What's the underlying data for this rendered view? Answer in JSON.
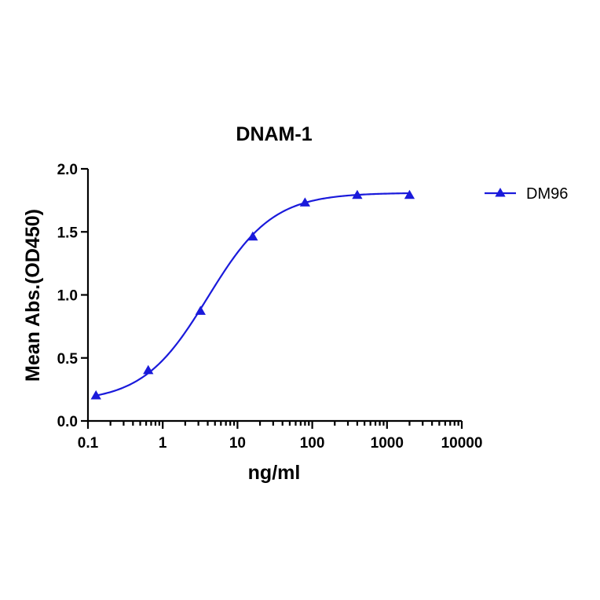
{
  "chart_data": {
    "type": "line",
    "title": "DNAM-1",
    "xlabel": "ng/ml",
    "ylabel": "Mean Abs.(OD450)",
    "x_scale": "log",
    "xlim": [
      0.1,
      10000
    ],
    "ylim": [
      0.0,
      2.0
    ],
    "x_ticks": [
      0.1,
      1,
      10,
      100,
      1000,
      10000
    ],
    "x_tick_labels": [
      "0.1",
      "1",
      "10",
      "100",
      "1000",
      "10000"
    ],
    "y_ticks": [
      0.0,
      0.5,
      1.0,
      1.5,
      2.0
    ],
    "y_tick_labels": [
      "0.0",
      "0.5",
      "1.0",
      "1.5",
      "2.0"
    ],
    "grid": false,
    "legend_position": "top-right",
    "series": [
      {
        "name": "DM96",
        "color": "#1a1adb",
        "marker": "triangle",
        "x": [
          0.128,
          0.64,
          3.2,
          16,
          80,
          400,
          2000
        ],
        "y": [
          0.2,
          0.4,
          0.87,
          1.46,
          1.73,
          1.79,
          1.79
        ],
        "fit": {
          "model": "4PL",
          "bottom": 0.15,
          "top": 1.81,
          "ec50": 4.0,
          "hill": 1.0,
          "x_range": [
            0.128,
            2000
          ]
        }
      }
    ]
  }
}
